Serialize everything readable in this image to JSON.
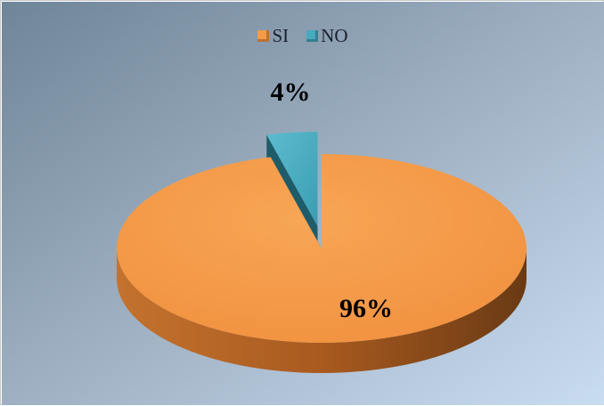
{
  "chart_data": {
    "type": "pie",
    "style": "3d-exploded",
    "categories": [
      "SI",
      "NO"
    ],
    "values": [
      96,
      4
    ],
    "data_labels": [
      "96%",
      "4%"
    ],
    "colors": [
      "#F59A45",
      "#47AABF"
    ],
    "legend_position": "top"
  }
}
